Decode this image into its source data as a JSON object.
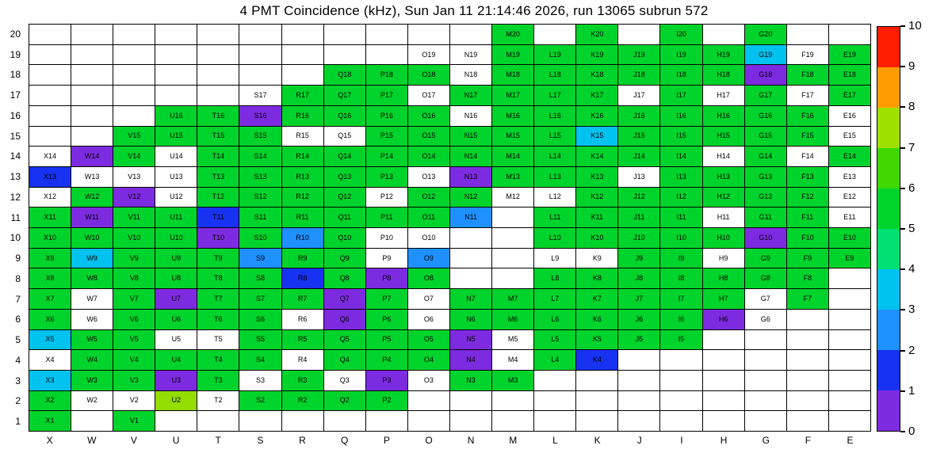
{
  "chart_data": {
    "type": "heatmap",
    "title": "4 PMT Coincidence (kHz), Sun Jan 11 21:14:46 2026, run 13065 subrun 572",
    "datetime": "Sun Jan 11 21:14:46 2026",
    "run": "13065",
    "subrun": "572",
    "units": "kHz",
    "xlabel": "",
    "ylabel": "",
    "columns": [
      "X",
      "W",
      "V",
      "U",
      "T",
      "S",
      "R",
      "Q",
      "P",
      "O",
      "N",
      "M",
      "L",
      "K",
      "J",
      "I",
      "H",
      "G",
      "F",
      "E"
    ],
    "rows": [
      "20",
      "19",
      "18",
      "17",
      "16",
      "15",
      "14",
      "13",
      "12",
      "11",
      "10",
      "9",
      "8",
      "7",
      "6",
      "5",
      "4",
      "3",
      "2",
      "1"
    ],
    "palette": {
      "p": {
        "hex": "#7d2be0",
        "approx_value": 0.5
      },
      "b": {
        "hex": "#1732f0",
        "approx_value": 1.5
      },
      "mb": {
        "hex": "#1e90ff",
        "approx_value": 2.5
      },
      "c": {
        "hex": "#00c2ee",
        "approx_value": 3.2
      },
      "g": {
        "hex": "#00d42c",
        "approx_value": 5
      },
      "yg": {
        "hex": "#93dd00",
        "approx_value": 7
      },
      "w": {
        "hex": "#ffffff",
        "approx_value": null
      }
    },
    "cells": [
      [
        "",
        "",
        "",
        "",
        "",
        "",
        "",
        "",
        "",
        "",
        "",
        "M20:g",
        "",
        "K20:g",
        "",
        "I20:g",
        "",
        "G20:g",
        "",
        ""
      ],
      [
        "",
        "",
        "",
        "",
        "",
        "",
        "",
        "",
        "",
        "O19:w",
        "N19:w",
        "M19:g",
        "L19:g",
        "K19:g",
        "J19:g",
        "I19:g",
        "H19:g",
        "G19:c",
        "F19:w",
        "E19:g"
      ],
      [
        "",
        "",
        "",
        "",
        "",
        "",
        "",
        "Q18:g",
        "P18:g",
        "O18:g",
        "N18:w",
        "M18:g",
        "L18:g",
        "K18:g",
        "J18:g",
        "I18:g",
        "H18:g",
        "G18:p",
        "F18:g",
        "E18:g"
      ],
      [
        "",
        "",
        "",
        "",
        "",
        "S17:w",
        "R17:g",
        "Q17:g",
        "P17:g",
        "O17:w",
        "N17:g",
        "M17:g",
        "L17:g",
        "K17:g",
        "J17:w",
        "I17:g",
        "H17:w",
        "G17:g",
        "F17:w",
        "E17:g"
      ],
      [
        "",
        "",
        "",
        "U16:g",
        "T16:g",
        "S16:p",
        "R16:g",
        "Q16:g",
        "P16:g",
        "O16:g",
        "N16:w",
        "M16:g",
        "L16:g",
        "K16:g",
        "J16:g",
        "I16:g",
        "H16:g",
        "G16:g",
        "F16:g",
        "E16:w"
      ],
      [
        "",
        "",
        "V15:g",
        "U15:g",
        "T15:g",
        "S15:g",
        "R15:w",
        "Q15:w",
        "P15:g",
        "O15:g",
        "N15:g",
        "M15:g",
        "L15:g",
        "K15:c",
        "J15:g",
        "I15:g",
        "H15:g",
        "G15:g",
        "F15:g",
        "E15:w"
      ],
      [
        "X14:w",
        "W14:p",
        "V14:g",
        "U14:w",
        "T14:g",
        "S14:g",
        "R14:g",
        "Q14:g",
        "P14:g",
        "O14:g",
        "N14:g",
        "M14:g",
        "L14:g",
        "K14:g",
        "J14:g",
        "I14:g",
        "H14:w",
        "G14:g",
        "F14:w",
        "E14:g"
      ],
      [
        "X13:b",
        "W13:w",
        "V13:w",
        "U13:w",
        "T13:g",
        "S13:g",
        "R13:g",
        "Q13:g",
        "P13:g",
        "O13:w",
        "N13:p",
        "M13:g",
        "L13:g",
        "K13:g",
        "J13:w",
        "I13:g",
        "H13:g",
        "G13:g",
        "F13:g",
        "E13:w"
      ],
      [
        "X12:w",
        "W12:g",
        "V12:p",
        "U12:w",
        "T12:g",
        "S12:g",
        "R12:g",
        "Q12:g",
        "P12:w",
        "O12:g",
        "N12:g",
        "M12:w",
        "L12:w",
        "K12:g",
        "J12:g",
        "I12:g",
        "H12:g",
        "G12:g",
        "F12:g",
        "E12:w"
      ],
      [
        "X11:g",
        "W11:p",
        "V11:g",
        "U11:g",
        "T11:b",
        "S11:g",
        "R11:g",
        "Q11:g",
        "P11:g",
        "O11:g",
        "N11:mb",
        "",
        "L11:g",
        "K11:g",
        "J11:g",
        "I11:g",
        "H11:w",
        "G11:g",
        "F11:g",
        "E11:w"
      ],
      [
        "X10:g",
        "W10:g",
        "V10:g",
        "U10:g",
        "T10:p",
        "S10:g",
        "R10:mb",
        "Q10:g",
        "P10:w",
        "O10:w",
        "",
        "",
        "L10:g",
        "K10:g",
        "J10:g",
        "I10:g",
        "H10:g",
        "G10:p",
        "F10:g",
        "E10:g"
      ],
      [
        "X9:g",
        "W9:c",
        "V9:g",
        "U9:g",
        "T9:g",
        "S9:mb",
        "R9:g",
        "Q9:g",
        "P9:w",
        "O9:mb",
        "",
        "",
        "L9:w",
        "K9:w",
        "J9:g",
        "I9:g",
        "H9:w",
        "G9:g",
        "F9:g",
        "E9:g"
      ],
      [
        "X8:g",
        "W8:g",
        "V8:g",
        "U8:g",
        "T8:g",
        "S8:g",
        "R8:b",
        "Q8:g",
        "P8:p",
        "O8:g",
        "",
        "",
        "L8:g",
        "K8:g",
        "J8:g",
        "I8:g",
        "H8:g",
        "G8:g",
        "F8:g",
        ""
      ],
      [
        "X7:g",
        "W7:w",
        "V7:g",
        "U7:p",
        "T7:g",
        "S7:g",
        "R7:g",
        "Q7:p",
        "P7:g",
        "O7:w",
        "N7:g",
        "M7:g",
        "L7:g",
        "K7:g",
        "J7:g",
        "I7:g",
        "H7:g",
        "G7:w",
        "F7:g",
        ""
      ],
      [
        "X6:g",
        "W6:w",
        "V6:g",
        "U6:g",
        "T6:g",
        "S6:g",
        "R6:w",
        "Q6:p",
        "P6:g",
        "O6:w",
        "N6:g",
        "M6:g",
        "L6:g",
        "K6:g",
        "J6:g",
        "I6:g",
        "H6:p",
        "G6:w",
        "",
        ""
      ],
      [
        "X5:c",
        "W5:g",
        "V5:g",
        "U5:w",
        "T5:w",
        "S5:g",
        "R5:g",
        "Q5:g",
        "P5:g",
        "O5:g",
        "N5:p",
        "M5:w",
        "L5:g",
        "K5:g",
        "J5:g",
        "I5:g",
        "",
        "",
        "",
        ""
      ],
      [
        "X4:w",
        "W4:g",
        "V4:g",
        "U4:g",
        "T4:g",
        "S4:g",
        "R4:w",
        "Q4:g",
        "P4:g",
        "O4:g",
        "N4:p",
        "M4:w",
        "L4:g",
        "K4:b",
        "",
        "",
        "",
        "",
        "",
        ""
      ],
      [
        "X3:c",
        "W3:g",
        "V3:g",
        "U3:p",
        "T3:g",
        "S3:w",
        "R3:g",
        "Q3:w",
        "P3:p",
        "O3:w",
        "N3:g",
        "M3:g",
        "",
        "",
        "",
        "",
        "",
        "",
        "",
        ""
      ],
      [
        "X2:g",
        "W2:w",
        "V2:w",
        "U2:yg",
        "T2:w",
        "S2:g",
        "R2:g",
        "Q2:g",
        "P2:g",
        "",
        "",
        "",
        "",
        "",
        "",
        "",
        "",
        "",
        "",
        ""
      ],
      [
        "X1:g",
        "",
        "V1:g",
        "",
        "",
        "",
        "",
        "",
        "",
        "",
        "",
        "",
        "",
        "",
        "",
        "",
        "",
        "",
        "",
        ""
      ]
    ],
    "colorbar": {
      "min": 0,
      "max": 10,
      "ticks": [
        "0",
        "1",
        "2",
        "3",
        "4",
        "5",
        "6",
        "7",
        "8",
        "9",
        "10"
      ],
      "segments_bottom_to_top": [
        "#7d2be0",
        "#1732f0",
        "#1e90ff",
        "#00c2ee",
        "#00df71",
        "#00d42c",
        "#3fd800",
        "#a0e000",
        "#ff9d00",
        "#ff1e00"
      ]
    },
    "grid": "on",
    "legend_position": "right-colorbar"
  }
}
